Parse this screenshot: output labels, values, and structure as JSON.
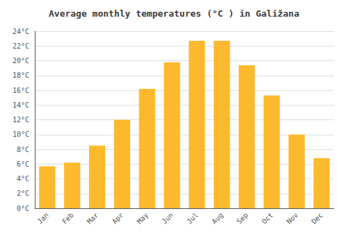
{
  "chart_data": {
    "type": "bar",
    "title": "Average monthly temperatures (°C ) in Galižana",
    "categories": [
      "Jan",
      "Feb",
      "Mar",
      "Apr",
      "May",
      "Jun",
      "Jul",
      "Aug",
      "Sep",
      "Oct",
      "Nov",
      "Dec"
    ],
    "values": [
      5.7,
      6.2,
      8.5,
      12.0,
      16.2,
      19.8,
      22.7,
      22.7,
      19.4,
      15.3,
      10.0,
      6.8
    ],
    "color": "#FDB92E",
    "ylim": [
      0,
      24
    ],
    "yticks": [
      {
        "value": 0,
        "label": "0°C"
      },
      {
        "value": 2,
        "label": "2°C"
      },
      {
        "value": 4,
        "label": "4°C"
      },
      {
        "value": 6,
        "label": "6°C"
      },
      {
        "value": 8,
        "label": "8°C"
      },
      {
        "value": 10,
        "label": "10°C"
      },
      {
        "value": 12,
        "label": "12°C"
      },
      {
        "value": 14,
        "label": "14°C"
      },
      {
        "value": 16,
        "label": "16°C"
      },
      {
        "value": 18,
        "label": "18°C"
      },
      {
        "value": 20,
        "label": "20°C"
      },
      {
        "value": 22,
        "label": "22°C"
      },
      {
        "value": 24,
        "label": "24°C"
      }
    ],
    "grid": true
  }
}
